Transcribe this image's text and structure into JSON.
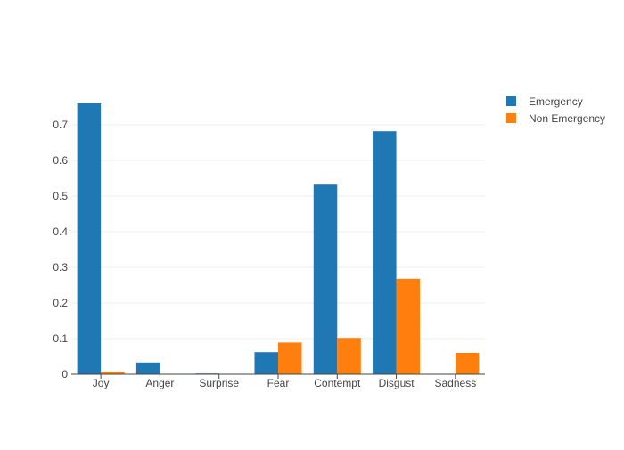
{
  "chart_data": {
    "type": "bar",
    "categories": [
      "Joy",
      "Anger",
      "Surprise",
      "Fear",
      "Contempt",
      "Disgust",
      "Sadness"
    ],
    "series": [
      {
        "name": "Emergency",
        "color": "#1f77b4",
        "values": [
          0.76,
          0.033,
          0.002,
          0.062,
          0.532,
          0.682,
          0.001
        ]
      },
      {
        "name": "Non Emergency",
        "color": "#ff7f0e",
        "values": [
          0.007,
          0.001,
          0.001,
          0.089,
          0.102,
          0.268,
          0.06
        ]
      }
    ],
    "ylim": [
      0,
      0.8
    ],
    "yticks": [
      "0",
      "0.1",
      "0.2",
      "0.3",
      "0.4",
      "0.5",
      "0.6",
      "0.7"
    ],
    "grid": true,
    "legend_position": "top-right",
    "title": "",
    "xlabel": "",
    "ylabel": ""
  }
}
